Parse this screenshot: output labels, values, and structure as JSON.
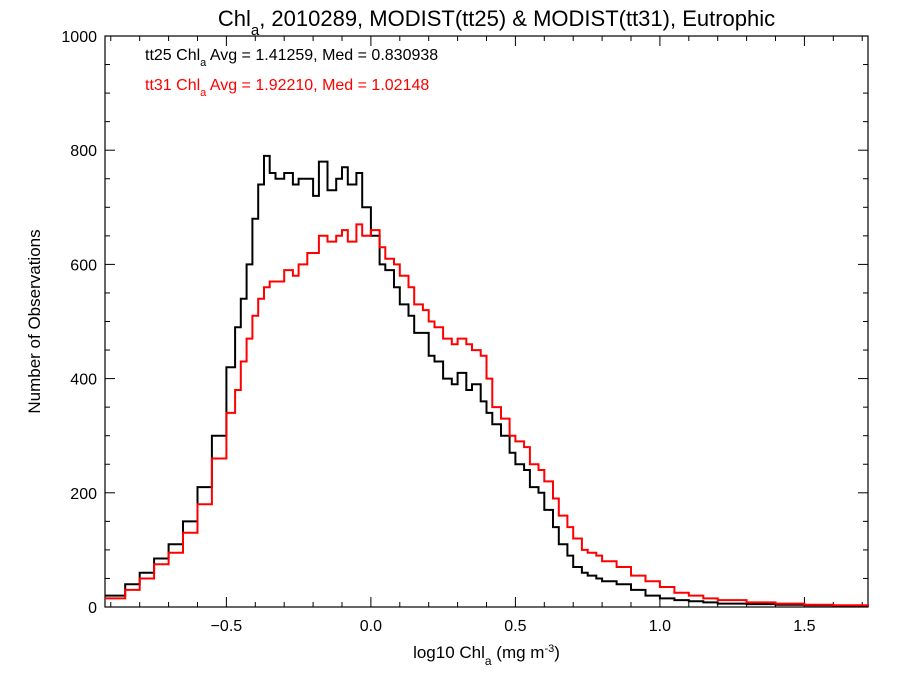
{
  "chart_data": {
    "type": "line",
    "title": {
      "main": "Chl",
      "sub": "a",
      "rest": ", 2010289, MODIST(tt25) & MODIST(tt31), Eutrophic"
    },
    "xlabel": {
      "main": "log10 Chl",
      "sub": "a",
      "rest": " (mg m",
      "sup": "-3",
      "end": ")"
    },
    "ylabel": "Number of Observations",
    "xlim": [
      -0.92,
      1.72
    ],
    "ylim": [
      0,
      1000
    ],
    "x_ticks": [
      -0.5,
      0.0,
      0.5,
      1.0,
      1.5
    ],
    "x_tick_labels": [
      "−0.5",
      "0.0",
      "0.5",
      "1.0",
      "1.5"
    ],
    "y_ticks": [
      0,
      200,
      400,
      600,
      800,
      1000
    ],
    "y_tick_labels": [
      "0",
      "200",
      "400",
      "600",
      "800",
      "1000"
    ],
    "series": [
      {
        "legend": {
          "pre": "tt25 Chl",
          "sub": "a",
          "post": " Avg = 1.41259, Med = 0.830938"
        },
        "color": "#000000",
        "x": [
          -0.92,
          -0.85,
          -0.8,
          -0.75,
          -0.7,
          -0.65,
          -0.6,
          -0.55,
          -0.5,
          -0.47,
          -0.45,
          -0.43,
          -0.41,
          -0.39,
          -0.37,
          -0.35,
          -0.33,
          -0.3,
          -0.27,
          -0.25,
          -0.22,
          -0.2,
          -0.18,
          -0.15,
          -0.12,
          -0.1,
          -0.08,
          -0.05,
          -0.03,
          0.0,
          0.03,
          0.05,
          0.08,
          0.1,
          0.13,
          0.15,
          0.18,
          0.2,
          0.22,
          0.25,
          0.28,
          0.3,
          0.33,
          0.35,
          0.38,
          0.4,
          0.42,
          0.45,
          0.48,
          0.5,
          0.53,
          0.55,
          0.58,
          0.6,
          0.63,
          0.65,
          0.68,
          0.7,
          0.73,
          0.75,
          0.78,
          0.8,
          0.85,
          0.9,
          0.95,
          1.0,
          1.05,
          1.1,
          1.15,
          1.2,
          1.3,
          1.4,
          1.5,
          1.6,
          1.72
        ],
        "y": [
          20,
          40,
          60,
          85,
          110,
          150,
          210,
          300,
          420,
          490,
          540,
          600,
          680,
          740,
          790,
          760,
          750,
          760,
          740,
          750,
          750,
          720,
          780,
          730,
          750,
          770,
          740,
          760,
          700,
          650,
          600,
          590,
          560,
          530,
          510,
          480,
          480,
          440,
          430,
          400,
          390,
          410,
          380,
          390,
          360,
          340,
          320,
          300,
          270,
          250,
          240,
          210,
          200,
          170,
          140,
          110,
          90,
          70,
          60,
          55,
          50,
          45,
          40,
          30,
          20,
          15,
          12,
          10,
          8,
          6,
          5,
          4,
          3,
          2,
          1
        ]
      },
      {
        "legend": {
          "pre": "tt31 Chl",
          "sub": "a",
          "post": " Avg = 1.92210, Med = 1.02148"
        },
        "color": "#ff0000",
        "x": [
          -0.92,
          -0.85,
          -0.8,
          -0.75,
          -0.7,
          -0.65,
          -0.6,
          -0.55,
          -0.5,
          -0.47,
          -0.45,
          -0.43,
          -0.41,
          -0.39,
          -0.37,
          -0.35,
          -0.33,
          -0.3,
          -0.27,
          -0.25,
          -0.22,
          -0.2,
          -0.18,
          -0.15,
          -0.12,
          -0.1,
          -0.08,
          -0.05,
          -0.03,
          0.0,
          0.03,
          0.05,
          0.08,
          0.1,
          0.13,
          0.15,
          0.18,
          0.2,
          0.22,
          0.25,
          0.28,
          0.3,
          0.33,
          0.35,
          0.38,
          0.4,
          0.42,
          0.45,
          0.48,
          0.5,
          0.53,
          0.55,
          0.58,
          0.6,
          0.63,
          0.65,
          0.68,
          0.7,
          0.73,
          0.75,
          0.78,
          0.8,
          0.85,
          0.9,
          0.95,
          1.0,
          1.05,
          1.1,
          1.15,
          1.2,
          1.3,
          1.4,
          1.5,
          1.6,
          1.72
        ],
        "y": [
          15,
          30,
          50,
          75,
          95,
          130,
          180,
          260,
          340,
          380,
          430,
          470,
          510,
          540,
          560,
          570,
          570,
          590,
          580,
          600,
          620,
          620,
          650,
          640,
          650,
          660,
          640,
          670,
          650,
          660,
          630,
          610,
          600,
          580,
          560,
          530,
          520,
          500,
          490,
          470,
          460,
          470,
          460,
          450,
          440,
          400,
          350,
          330,
          300,
          290,
          280,
          250,
          240,
          220,
          190,
          160,
          140,
          120,
          100,
          95,
          90,
          80,
          70,
          55,
          45,
          35,
          25,
          20,
          15,
          12,
          8,
          6,
          4,
          3,
          2
        ]
      }
    ],
    "grid": false,
    "legend_position": "top-left"
  }
}
